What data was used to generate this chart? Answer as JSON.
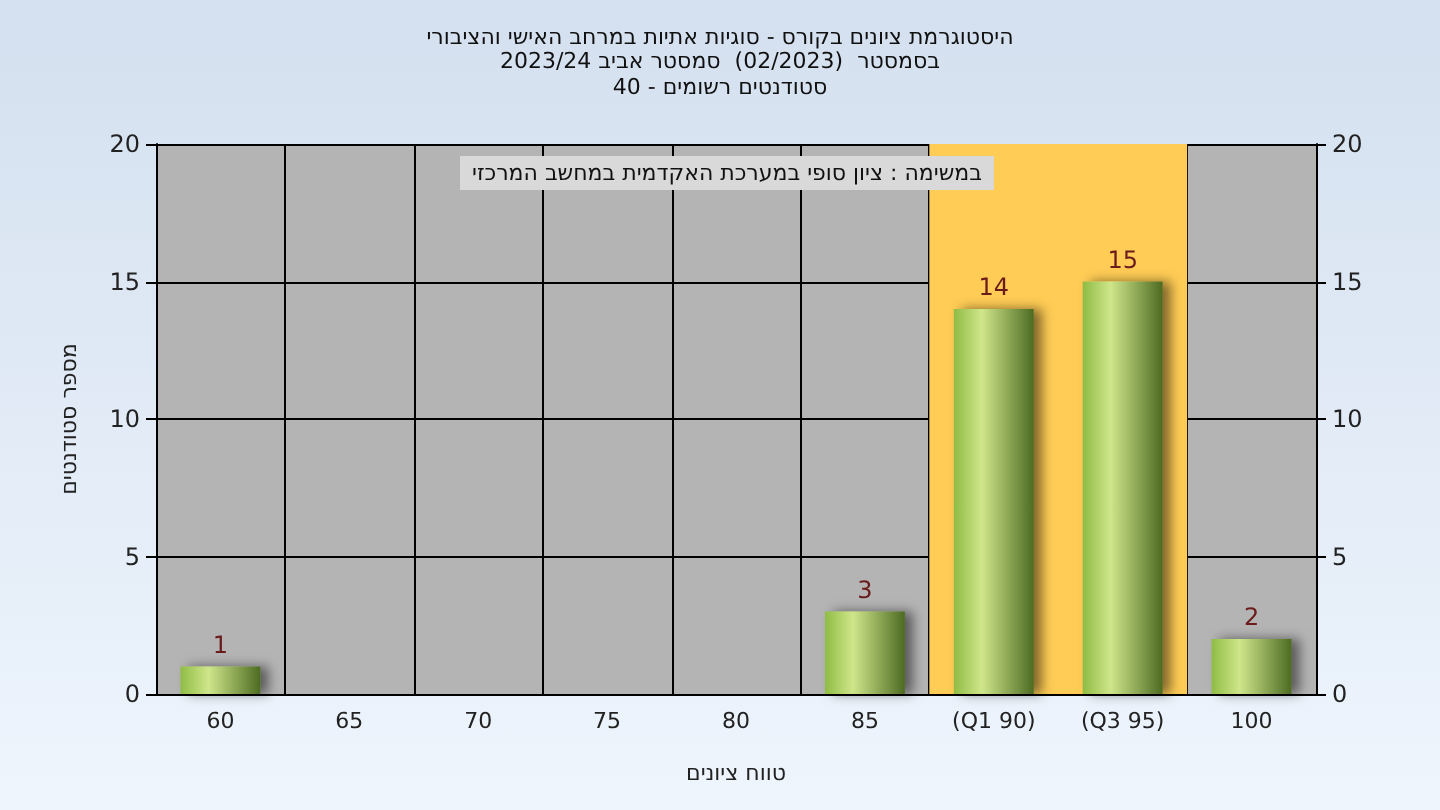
{
  "chart_data": {
    "type": "bar",
    "title": "היסטוגרמת ציונים בקורס - סוגיות אתיות במרחב האישי והציבורי",
    "subtitle": "בסמסטר  (02/2023)  סמסטר אביב 2023/24\nסטודנטים רשומים - 40",
    "xlabel": "טווח ציונים",
    "ylabel": "מספר סטודנטים",
    "annotations": [
      "במשימה : ציון סופי במערכת האקדמית במחשב המרכזי"
    ],
    "categories": [
      "60",
      "65",
      "70",
      "75",
      "80",
      "85",
      "(Q1 90)",
      "(Q3 95)",
      "100"
    ],
    "series": [
      {
        "color": "#8fbc45",
        "values": [
          1,
          0,
          0,
          0,
          0,
          3,
          14,
          15,
          2
        ],
        "value_labels": [
          "1",
          null,
          null,
          null,
          null,
          "3",
          "14",
          "15",
          "2"
        ]
      }
    ],
    "bands": [
      {
        "axis": "x",
        "from": "(Q1 90)",
        "to": "(Q3 95)",
        "color": "#ffcc55"
      }
    ],
    "ylim": [
      0,
      20
    ],
    "yticks": [
      0,
      5,
      10,
      15,
      20
    ],
    "y2lim": [
      0,
      20
    ],
    "y2ticks": [
      0,
      5,
      10,
      15,
      20
    ],
    "grid": true
  }
}
